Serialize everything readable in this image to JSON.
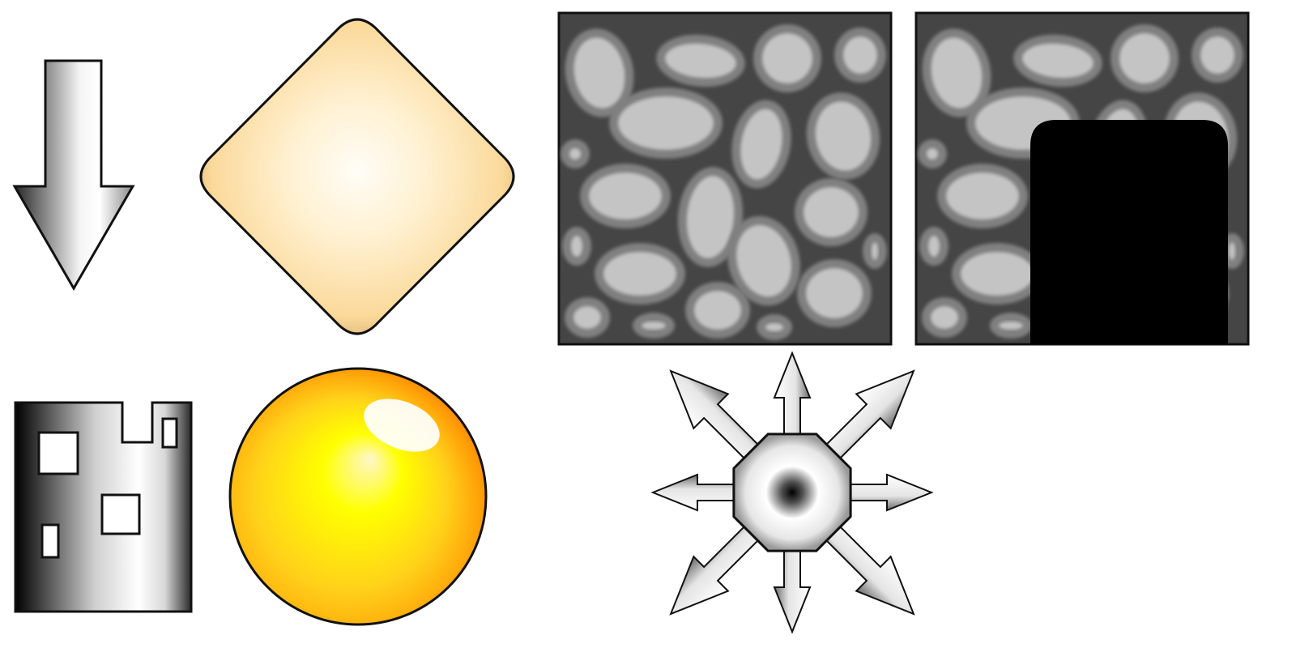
{
  "scene": {
    "description_text": "",
    "colors": {
      "background": "#ffffff",
      "outline": "#111111",
      "stone_wall_bg": "#454545",
      "stone_outer": "#808080",
      "stone_inner": "#c4c4c4",
      "doorway": "#000000",
      "diamond_light": "#fffdf7",
      "diamond_mid": "#fde3a6",
      "diamond_dark": "#c59f5c",
      "orb_highlight": "#ffffff",
      "orb_center": "#ffff00",
      "orb_mid": "#ffc400",
      "orb_edge": "#ff8a00"
    },
    "icons": [
      "down-arrow-icon",
      "diamond-tile-icon",
      "stone-wall-tile",
      "stone-wall-doorway-tile",
      "tower-building-icon",
      "golden-orb-icon",
      "eight-direction-arrows-icon"
    ]
  }
}
